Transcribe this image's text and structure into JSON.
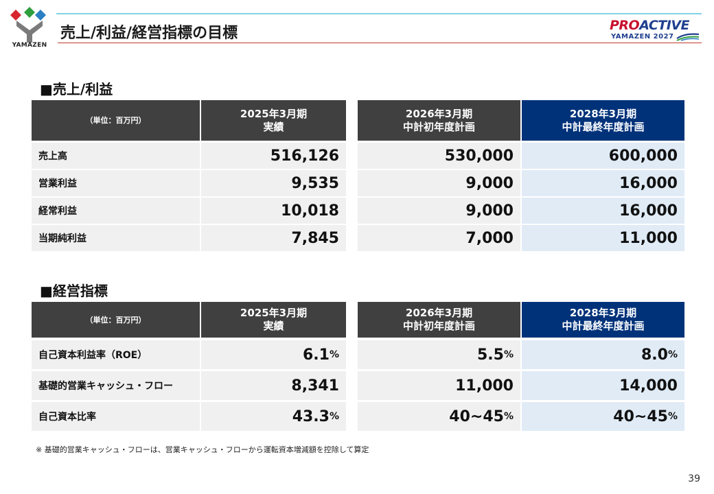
{
  "header": {
    "title": "売上/利益/経営指標の目標",
    "logo_text": "YAMAZEN",
    "brand_main_1": "PRO",
    "brand_main_2": "ACTIVE",
    "brand_sub": "YAMAZEN 2027"
  },
  "columns": {
    "unit": "（単位：百万円）",
    "c1_line1": "2025年3月期",
    "c1_line2": "実績",
    "c2_line1": "2026年3月期",
    "c2_line2": "中計初年度計画",
    "c3_line1": "2028年3月期",
    "c3_line2": "中計最終年度計画"
  },
  "sales": {
    "title": "■売上/利益",
    "rows": [
      {
        "label": "売上高",
        "v1": "516,126",
        "v2": "530,000",
        "v3": "600,000"
      },
      {
        "label": "営業利益",
        "v1": "9,535",
        "v2": "9,000",
        "v3": "16,000"
      },
      {
        "label": "経常利益",
        "v1": "10,018",
        "v2": "9,000",
        "v3": "16,000"
      },
      {
        "label": "当期純利益",
        "v1": "7,845",
        "v2": "7,000",
        "v3": "11,000"
      }
    ]
  },
  "kpi": {
    "title": "■経営指標",
    "rows": [
      {
        "label": "自己資本利益率（ROE）",
        "v1": "6.1",
        "u1": "%",
        "v2": "5.5",
        "u2": "%",
        "v3": "8.0",
        "u3": "%"
      },
      {
        "label": "基礎的営業キャッシュ・フロー",
        "v1": "8,341",
        "u1": "",
        "v2": "11,000",
        "u2": "",
        "v3": "14,000",
        "u3": ""
      },
      {
        "label": "自己資本比率",
        "v1": "43.3",
        "u1": "%",
        "v2": "40~45",
        "u2": "%",
        "v3": "40~45",
        "u3": "%"
      }
    ]
  },
  "footnote": "※ 基礎的営業キャッシュ・フローは、営業キャッシュ・フローから運転資本増減額を控除して算定",
  "page_number": "39",
  "colors": {
    "dark_header": "#404040",
    "navy_header": "#00327a",
    "title_rule": "#c0392b",
    "top_line": "#7fd3e6"
  },
  "icons": {
    "logo": "yamazen-logo",
    "brand": "proactive-logo"
  }
}
